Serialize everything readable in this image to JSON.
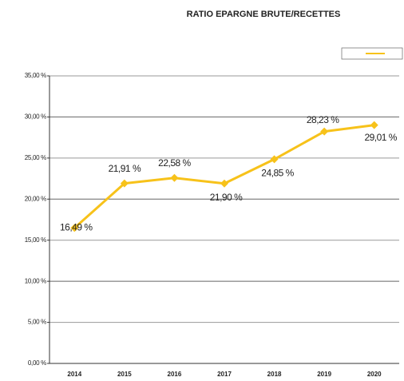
{
  "chart_data": {
    "type": "line",
    "title": "RATIO EPARGNE BRUTE/RECETTES",
    "categories": [
      "2014",
      "2015",
      "2016",
      "2017",
      "2018",
      "2019",
      "2020"
    ],
    "series": [
      {
        "color": "#f7c21a",
        "values": [
          16.49,
          21.91,
          22.58,
          21.9,
          24.85,
          28.23,
          29.01
        ],
        "value_labels": [
          "16,49 %",
          "21,91 %",
          "22,58 %",
          "21,90 %",
          "24,85 %",
          "28,23 %",
          "29,01 %"
        ]
      }
    ],
    "ylim": [
      0,
      35
    ],
    "yticks": [
      {
        "value": 0,
        "label": "0,00 %"
      },
      {
        "value": 5,
        "label": "5,00 %"
      },
      {
        "value": 10,
        "label": "10,00 %"
      },
      {
        "value": 15,
        "label": "15,00 %"
      },
      {
        "value": 20,
        "label": "20,00 %"
      },
      {
        "value": 25,
        "label": "25,00 %"
      },
      {
        "value": 30,
        "label": "30,00 %"
      },
      {
        "value": 35,
        "label": "35,00 %"
      }
    ],
    "grid": true
  }
}
